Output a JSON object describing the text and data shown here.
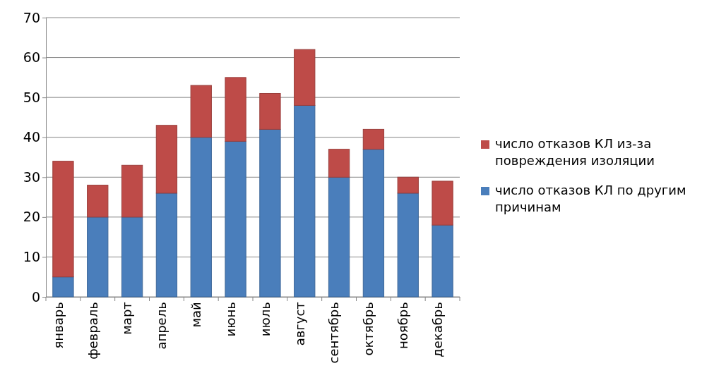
{
  "chart_data": {
    "type": "bar",
    "stacked": true,
    "categories": [
      "январь",
      "февраль",
      "март",
      "апрель",
      "май",
      "июнь",
      "июль",
      "август",
      "сентябрь",
      "октябрь",
      "ноябрь",
      "декабрь"
    ],
    "series": [
      {
        "name": "число отказов КЛ по другим причинам",
        "color": "#4a7ebb",
        "values": [
          5,
          20,
          20,
          26,
          40,
          39,
          42,
          48,
          30,
          37,
          26,
          18
        ]
      },
      {
        "name": "число отказов КЛ из-за повреждения изоляции",
        "color": "#be4b48",
        "values": [
          29,
          8,
          13,
          17,
          13,
          16,
          9,
          14,
          7,
          5,
          4,
          11
        ]
      }
    ],
    "ylim": [
      0,
      70
    ],
    "yticks": [
      0,
      10,
      20,
      30,
      40,
      50,
      60,
      70
    ],
    "grid": "y",
    "legend": "right"
  }
}
